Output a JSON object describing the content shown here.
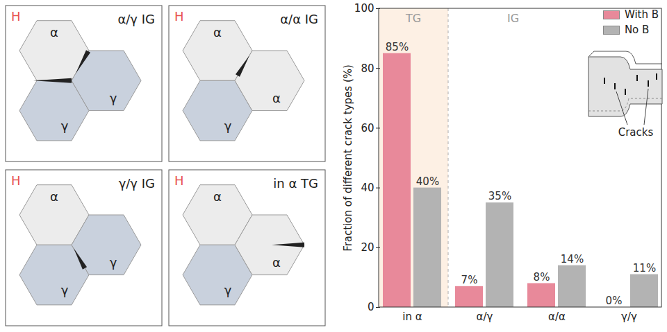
{
  "chart_data": {
    "type": "bar",
    "y_label": "Fraction of different crack types (%)",
    "categories": [
      "in α",
      "α/γ",
      "α/α",
      "γ/γ"
    ],
    "series": [
      {
        "name": "With B",
        "color": "#e8899a",
        "values": [
          85,
          7,
          8,
          0
        ],
        "value_labels": [
          "85%",
          "7%",
          "8%",
          "0%"
        ]
      },
      {
        "name": "No B",
        "color": "#b3b3b3",
        "values": [
          40,
          35,
          14,
          11
        ],
        "value_labels": [
          "40%",
          "35%",
          "14%",
          "11%"
        ]
      }
    ],
    "ylim": [
      0,
      100
    ],
    "yticks": [
      0,
      20,
      40,
      60,
      80,
      100
    ],
    "data_labels": true,
    "legend": "top-right",
    "annotations": [
      "TG",
      "IG",
      "Cracks"
    ]
  },
  "diagram": {
    "panels": [
      {
        "corner": "H",
        "title": "α/γ IG",
        "grains": [
          "α",
          "γ",
          "γ"
        ]
      },
      {
        "corner": "H",
        "title": "α/α IG",
        "grains": [
          "α",
          "γ",
          "α"
        ]
      },
      {
        "corner": "H",
        "title": "γ/γ IG",
        "grains": [
          "α",
          "γ",
          "γ"
        ]
      },
      {
        "corner": "H",
        "title": "in α TG",
        "grains": [
          "α",
          "γ",
          "α"
        ]
      }
    ]
  }
}
